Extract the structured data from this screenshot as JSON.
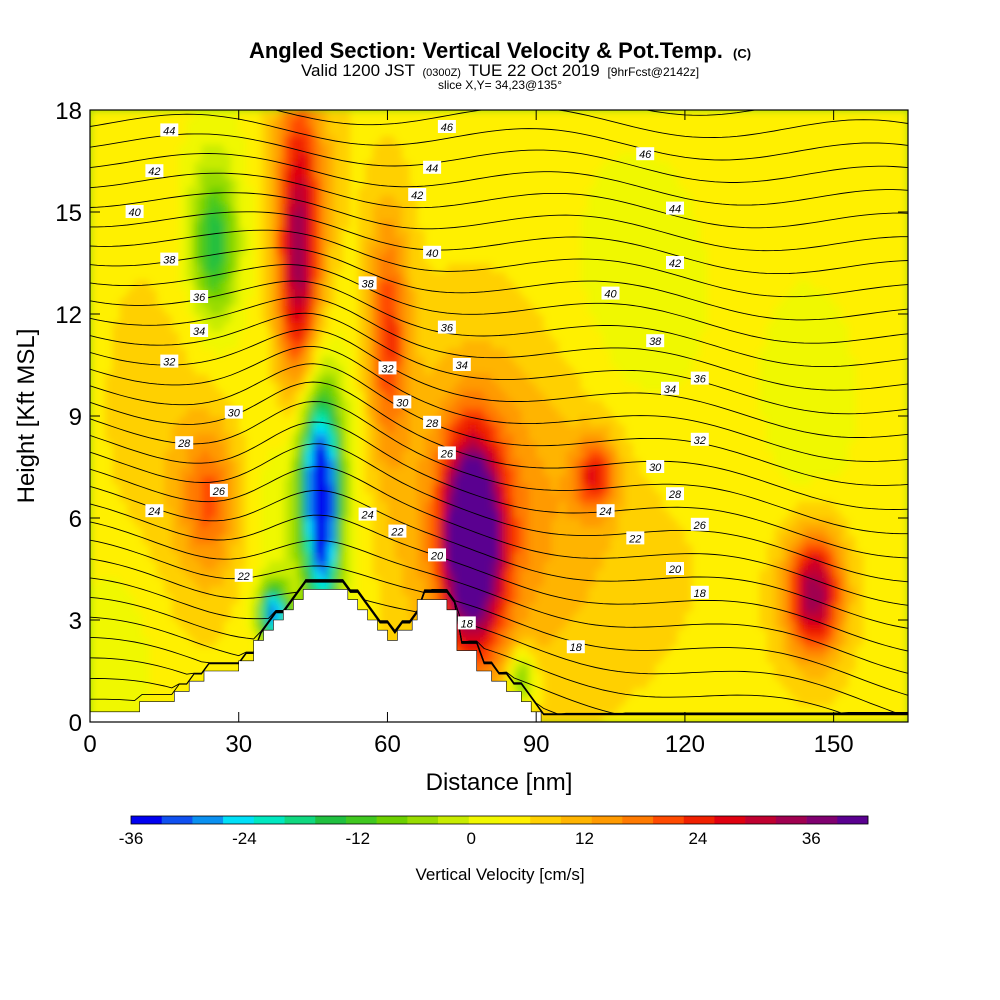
{
  "chart_data": {
    "type": "heatmap",
    "title": "Angled Section: Vertical Velocity & Pot.Temp.",
    "title_suffix": "(C)",
    "subtitle_valid": "Valid 1200 JST",
    "subtitle_utc": "(0300Z)",
    "subtitle_date": "TUE 22 Oct 2019",
    "subtitle_fcst": "[9hrFcst@2142z]",
    "slice_label": "slice X,Y= 34,23@135°",
    "xlabel": "Distance [nm]",
    "ylabel": "Height [Kft MSL]",
    "xlim": [
      0,
      165
    ],
    "ylim": [
      0,
      18
    ],
    "x_ticks": [
      "0",
      "30",
      "60",
      "90",
      "120",
      "150"
    ],
    "y_ticks": [
      "0",
      "3",
      "6",
      "9",
      "12",
      "15",
      "18"
    ],
    "colorbar": {
      "label": "Vertical Velocity [cm/s]",
      "range": [
        -36,
        42
      ],
      "step": 3,
      "tick_labels": [
        "-36",
        "-24",
        "-12",
        "0",
        "12",
        "24",
        "36"
      ],
      "colors": [
        "#0000f0",
        "#1050f0",
        "#0a90f0",
        "#00e0f8",
        "#00e8c0",
        "#10d880",
        "#20c040",
        "#40c820",
        "#6cd000",
        "#98dc00",
        "#c8ec00",
        "#f0f800",
        "#fff000",
        "#ffd000",
        "#ffb400",
        "#ff9a00",
        "#ff7a00",
        "#ff4a00",
        "#f02000",
        "#e00010",
        "#c00030",
        "#a00050",
        "#800070",
        "#5a0090"
      ]
    },
    "terrain": [
      [
        0,
        0.3
      ],
      [
        10,
        0.3
      ],
      [
        10,
        0.6
      ],
      [
        17,
        0.6
      ],
      [
        17,
        0.9
      ],
      [
        20,
        0.9
      ],
      [
        20,
        1.2
      ],
      [
        23,
        1.2
      ],
      [
        23,
        1.5
      ],
      [
        30,
        1.5
      ],
      [
        30,
        1.8
      ],
      [
        33,
        1.8
      ],
      [
        33,
        2.4
      ],
      [
        35,
        2.4
      ],
      [
        35,
        2.7
      ],
      [
        37,
        2.7
      ],
      [
        37,
        3.0
      ],
      [
        39,
        3.0
      ],
      [
        39,
        3.3
      ],
      [
        41,
        3.3
      ],
      [
        41,
        3.6
      ],
      [
        43,
        3.6
      ],
      [
        43,
        3.9
      ],
      [
        52,
        3.9
      ],
      [
        52,
        3.6
      ],
      [
        54,
        3.6
      ],
      [
        54,
        3.3
      ],
      [
        56,
        3.3
      ],
      [
        56,
        3.0
      ],
      [
        58,
        3.0
      ],
      [
        58,
        2.7
      ],
      [
        60,
        2.7
      ],
      [
        60,
        2.4
      ],
      [
        62,
        2.4
      ],
      [
        62,
        2.7
      ],
      [
        65,
        2.7
      ],
      [
        65,
        3.0
      ],
      [
        66,
        3.0
      ],
      [
        66,
        3.6
      ],
      [
        72,
        3.6
      ],
      [
        72,
        3.3
      ],
      [
        74,
        3.3
      ],
      [
        74,
        2.1
      ],
      [
        78,
        2.1
      ],
      [
        78,
        1.5
      ],
      [
        81,
        1.5
      ],
      [
        81,
        1.2
      ],
      [
        84,
        1.2
      ],
      [
        84,
        0.9
      ],
      [
        87,
        0.9
      ],
      [
        87,
        0.6
      ],
      [
        89,
        0.6
      ],
      [
        89,
        0.3
      ],
      [
        91,
        0.3
      ],
      [
        91,
        0
      ],
      [
        165,
        0
      ]
    ],
    "vertical_velocity_cells": [
      {
        "x": 77,
        "y": 5.5,
        "sx": 3.5,
        "sy": 1.8,
        "v": 40
      },
      {
        "x": 78,
        "y": 4.8,
        "sx": 6,
        "sy": 2.8,
        "v": 12
      },
      {
        "x": 146,
        "y": 3.8,
        "sx": 4,
        "sy": 1.3,
        "v": 28
      },
      {
        "x": 102,
        "y": 7.3,
        "sx": 3,
        "sy": 0.8,
        "v": 16
      },
      {
        "x": 85,
        "y": 6.5,
        "sx": 22,
        "sy": 3.5,
        "v": 8
      },
      {
        "x": 42,
        "y": 13.5,
        "sx": 3,
        "sy": 3,
        "v": 22
      },
      {
        "x": 60,
        "y": 11.5,
        "sx": 3,
        "sy": 2.5,
        "v": 16
      },
      {
        "x": 43,
        "y": 14.5,
        "sx": 5,
        "sy": 5,
        "v": 8
      },
      {
        "x": 24,
        "y": 6.5,
        "sx": 4,
        "sy": 1.5,
        "v": 12
      },
      {
        "x": 20,
        "y": 9,
        "sx": 10,
        "sy": 4,
        "v": 4
      },
      {
        "x": 46,
        "y": 7.5,
        "sx": 3,
        "sy": 2,
        "v": -24
      },
      {
        "x": 47,
        "y": 5.5,
        "sx": 2,
        "sy": 2,
        "v": -22
      },
      {
        "x": 37,
        "y": 3.2,
        "sx": 2,
        "sy": 0.6,
        "v": -30
      },
      {
        "x": 45,
        "y": 7,
        "sx": 8,
        "sy": 4,
        "v": -10
      },
      {
        "x": 25,
        "y": 14,
        "sx": 3,
        "sy": 1.5,
        "v": -16
      },
      {
        "x": 25,
        "y": 14,
        "sx": 7,
        "sy": 3.5,
        "v": -5
      },
      {
        "x": 87,
        "y": 1.3,
        "sx": 2,
        "sy": 0.6,
        "v": -16
      },
      {
        "x": 110,
        "y": 11.5,
        "sx": 12,
        "sy": 4,
        "v": -5
      },
      {
        "x": 145,
        "y": 9.5,
        "sx": 7,
        "sy": 2.5,
        "v": -5
      },
      {
        "x": 5,
        "y": 2,
        "sx": 6,
        "sy": 2,
        "v": -5
      }
    ],
    "theta_labels": [
      {
        "x": 16,
        "y": 17.4,
        "t": "44"
      },
      {
        "x": 72,
        "y": 17.5,
        "t": "46"
      },
      {
        "x": 112,
        "y": 16.7,
        "t": "46"
      },
      {
        "x": 13,
        "y": 16.2,
        "t": "42"
      },
      {
        "x": 69,
        "y": 16.3,
        "t": "44"
      },
      {
        "x": 9,
        "y": 15.0,
        "t": "40"
      },
      {
        "x": 66,
        "y": 15.5,
        "t": "42"
      },
      {
        "x": 118,
        "y": 15.1,
        "t": "44"
      },
      {
        "x": 16,
        "y": 13.6,
        "t": "38"
      },
      {
        "x": 69,
        "y": 13.8,
        "t": "40"
      },
      {
        "x": 118,
        "y": 13.5,
        "t": "42"
      },
      {
        "x": 22,
        "y": 12.5,
        "t": "36"
      },
      {
        "x": 56,
        "y": 12.9,
        "t": "38"
      },
      {
        "x": 105,
        "y": 12.6,
        "t": "40"
      },
      {
        "x": 22,
        "y": 11.5,
        "t": "34"
      },
      {
        "x": 72,
        "y": 11.6,
        "t": "36"
      },
      {
        "x": 114,
        "y": 11.2,
        "t": "38"
      },
      {
        "x": 16,
        "y": 10.6,
        "t": "32"
      },
      {
        "x": 60,
        "y": 10.4,
        "t": "32"
      },
      {
        "x": 75,
        "y": 10.5,
        "t": "34"
      },
      {
        "x": 123,
        "y": 10.1,
        "t": "36"
      },
      {
        "x": 117,
        "y": 9.8,
        "t": "34"
      },
      {
        "x": 29,
        "y": 9.1,
        "t": "30"
      },
      {
        "x": 63,
        "y": 9.4,
        "t": "30"
      },
      {
        "x": 69,
        "y": 8.8,
        "t": "28"
      },
      {
        "x": 123,
        "y": 8.3,
        "t": "32"
      },
      {
        "x": 19,
        "y": 8.2,
        "t": "28"
      },
      {
        "x": 72,
        "y": 7.9,
        "t": "26"
      },
      {
        "x": 114,
        "y": 7.5,
        "t": "30"
      },
      {
        "x": 26,
        "y": 6.8,
        "t": "26"
      },
      {
        "x": 118,
        "y": 6.7,
        "t": "28"
      },
      {
        "x": 13,
        "y": 6.2,
        "t": "24"
      },
      {
        "x": 56,
        "y": 6.1,
        "t": "24"
      },
      {
        "x": 104,
        "y": 6.2,
        "t": "24"
      },
      {
        "x": 123,
        "y": 5.8,
        "t": "26"
      },
      {
        "x": 62,
        "y": 5.6,
        "t": "22"
      },
      {
        "x": 110,
        "y": 5.4,
        "t": "22"
      },
      {
        "x": 70,
        "y": 4.9,
        "t": "20"
      },
      {
        "x": 118,
        "y": 4.5,
        "t": "20"
      },
      {
        "x": 31,
        "y": 4.3,
        "t": "22"
      },
      {
        "x": 123,
        "y": 3.8,
        "t": "18"
      },
      {
        "x": 76,
        "y": 2.9,
        "t": "18"
      },
      {
        "x": 98,
        "y": 2.2,
        "t": "18"
      }
    ]
  }
}
